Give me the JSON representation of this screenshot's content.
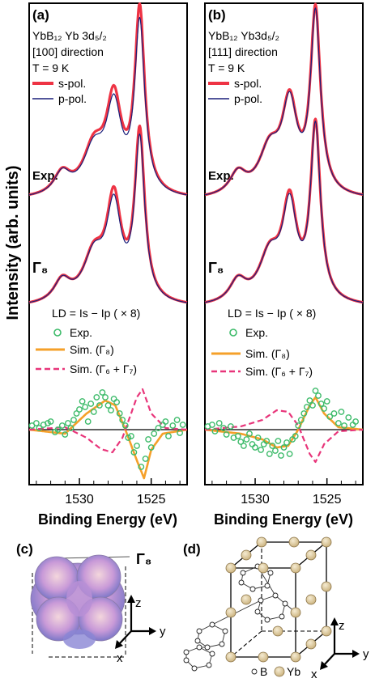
{
  "colors": {
    "s_pol": "#ee3344",
    "p_pol": "#1a1f7a",
    "exp_ld": "#3dbb6a",
    "sim_g8": "#f5a02a",
    "sim_g67": "#e8357a",
    "axis": "#000000",
    "atom_yb": "#d8c49a"
  },
  "ylabel": "Intensity (arb. units)",
  "chart_data": [
    {
      "type": "line",
      "panel": "(a)",
      "sample_line1": "YbB₁₂ Yb 3d₅/₂",
      "sample_line2": "[100] direction",
      "temperature": "T = 9 K",
      "legend": {
        "s_pol": "s-pol.",
        "p_pol": "p-pol."
      },
      "label_exp": "Exp.",
      "label_sim": "Γ₈",
      "ld_formula": "LD = Is − Ip ( × 8)",
      "ld_legend": {
        "exp": "Exp.",
        "sim_g8": "Sim. (Γ₈)",
        "sim_g67": "Sim. (Γ₆ + Γ₇)"
      },
      "xlabel": "Binding Energy (eV)",
      "xlim": [
        1533.5,
        1522.5
      ],
      "xticks": [
        1530,
        1525
      ],
      "xtick_labels": [
        "1530",
        "1525"
      ],
      "series": [
        {
          "name": "s-pol.",
          "curve": "exp",
          "peaks": [
            [
              1531.2,
              0.12,
              0.7
            ],
            [
              1529.0,
              0.25,
              0.9
            ],
            [
              1527.6,
              0.5,
              0.65
            ],
            [
              1525.8,
              1.0,
              0.42
            ]
          ]
        },
        {
          "name": "p-pol.",
          "curve": "exp",
          "peaks": [
            [
              1531.2,
              0.12,
              0.7
            ],
            [
              1529.0,
              0.24,
              0.9
            ],
            [
              1527.6,
              0.46,
              0.65
            ],
            [
              1525.8,
              0.93,
              0.42
            ]
          ]
        },
        {
          "name": "s-pol.",
          "curve": "sim",
          "peaks": [
            [
              1531.2,
              0.12,
              0.7
            ],
            [
              1529.0,
              0.25,
              0.9
            ],
            [
              1527.6,
              0.54,
              0.62
            ],
            [
              1525.8,
              0.92,
              0.42
            ]
          ]
        },
        {
          "name": "p-pol.",
          "curve": "sim",
          "peaks": [
            [
              1531.2,
              0.12,
              0.7
            ],
            [
              1529.0,
              0.25,
              0.9
            ],
            [
              1527.6,
              0.5,
              0.62
            ],
            [
              1525.8,
              0.88,
              0.42
            ]
          ]
        }
      ],
      "ld_sim_g8": [
        [
          1533.5,
          0
        ],
        [
          1531.0,
          -0.05
        ],
        [
          1529.5,
          0.2
        ],
        [
          1528.2,
          0.36
        ],
        [
          1527.5,
          0.3
        ],
        [
          1526.8,
          0.0
        ],
        [
          1526.0,
          -0.38
        ],
        [
          1525.5,
          -0.6
        ],
        [
          1525.0,
          -0.25
        ],
        [
          1524.2,
          -0.05
        ],
        [
          1522.5,
          0
        ]
      ],
      "ld_sim_g67": [
        [
          1533.5,
          0
        ],
        [
          1531.0,
          0.03
        ],
        [
          1529.5,
          -0.1
        ],
        [
          1528.5,
          -0.24
        ],
        [
          1527.7,
          -0.28
        ],
        [
          1527.0,
          -0.1
        ],
        [
          1526.0,
          0.4
        ],
        [
          1525.6,
          0.5
        ],
        [
          1525.0,
          0.2
        ],
        [
          1524.0,
          0.02
        ],
        [
          1522.5,
          0
        ]
      ],
      "ld_exp": [
        [
          1533.3,
          0.05
        ],
        [
          1533.0,
          0.08
        ],
        [
          1532.8,
          0.02
        ],
        [
          1532.5,
          0.06
        ],
        [
          1532.2,
          0.08
        ],
        [
          1532.0,
          0.1
        ],
        [
          1531.7,
          -0.03
        ],
        [
          1531.5,
          0.0
        ],
        [
          1531.2,
          0.05
        ],
        [
          1531.0,
          -0.06
        ],
        [
          1530.8,
          0.08
        ],
        [
          1530.6,
          0.02
        ],
        [
          1530.4,
          0.12
        ],
        [
          1530.2,
          0.2
        ],
        [
          1530.0,
          0.25
        ],
        [
          1529.8,
          0.35
        ],
        [
          1529.6,
          0.28
        ],
        [
          1529.4,
          0.1
        ],
        [
          1529.2,
          0.32
        ],
        [
          1529.0,
          0.22
        ],
        [
          1528.8,
          0.4
        ],
        [
          1528.6,
          0.3
        ],
        [
          1528.4,
          0.46
        ],
        [
          1528.2,
          0.4
        ],
        [
          1528.0,
          0.3
        ],
        [
          1527.8,
          0.24
        ],
        [
          1527.6,
          0.38
        ],
        [
          1527.4,
          0.34
        ],
        [
          1527.2,
          0.2
        ],
        [
          1527.0,
          0.12
        ],
        [
          1526.8,
          0.05
        ],
        [
          1526.6,
          -0.1
        ],
        [
          1526.4,
          -0.08
        ],
        [
          1526.2,
          -0.28
        ],
        [
          1526.0,
          -0.2
        ],
        [
          1525.7,
          -0.46
        ],
        [
          1525.4,
          -0.36
        ],
        [
          1525.2,
          -0.12
        ],
        [
          1525.0,
          -0.22
        ],
        [
          1524.8,
          -0.05
        ],
        [
          1524.5,
          0.02
        ],
        [
          1524.2,
          0.06
        ],
        [
          1524.0,
          0.1
        ],
        [
          1523.8,
          -0.08
        ],
        [
          1523.5,
          0.05
        ],
        [
          1523.2,
          0.12
        ],
        [
          1523.0,
          -0.04
        ],
        [
          1522.8,
          0.06
        ]
      ]
    },
    {
      "type": "line",
      "panel": "(b)",
      "sample_line1": "YbB₁₂ Yb3d₅/₂",
      "sample_line2": "[111] direction",
      "temperature": "T = 9 K",
      "legend": {
        "s_pol": "s-pol.",
        "p_pol": "p-pol."
      },
      "label_exp": "Exp.",
      "label_sim": "Γ₈",
      "ld_formula": "LD = Is − Ip ( × 8)",
      "ld_legend": {
        "exp": "Exp.",
        "sim_g8": "Sim. (Γ₈)",
        "sim_g67": "Sim. (Γ₆ + Γ₇)"
      },
      "xlabel": "Binding Energy (eV)",
      "xlim": [
        1533.5,
        1522.5
      ],
      "xticks": [
        1530,
        1525
      ],
      "xtick_labels": [
        "1530",
        "1525"
      ],
      "series": [
        {
          "name": "s-pol.",
          "curve": "exp",
          "peaks": [
            [
              1531.2,
              0.12,
              0.7
            ],
            [
              1529.0,
              0.24,
              0.9
            ],
            [
              1527.6,
              0.48,
              0.65
            ],
            [
              1525.8,
              1.0,
              0.42
            ]
          ]
        },
        {
          "name": "p-pol.",
          "curve": "exp",
          "peaks": [
            [
              1531.2,
              0.12,
              0.7
            ],
            [
              1529.0,
              0.24,
              0.9
            ],
            [
              1527.6,
              0.47,
              0.65
            ],
            [
              1525.8,
              0.98,
              0.42
            ]
          ]
        },
        {
          "name": "s-pol.",
          "curve": "sim",
          "peaks": [
            [
              1531.2,
              0.12,
              0.7
            ],
            [
              1529.0,
              0.25,
              0.9
            ],
            [
              1527.6,
              0.52,
              0.62
            ],
            [
              1525.8,
              0.96,
              0.42
            ]
          ]
        },
        {
          "name": "p-pol.",
          "curve": "sim",
          "peaks": [
            [
              1531.2,
              0.12,
              0.7
            ],
            [
              1529.0,
              0.25,
              0.9
            ],
            [
              1527.6,
              0.5,
              0.62
            ],
            [
              1525.8,
              0.95,
              0.42
            ]
          ]
        }
      ],
      "ld_sim_g8": [
        [
          1533.5,
          0
        ],
        [
          1531.0,
          -0.05
        ],
        [
          1529.5,
          -0.12
        ],
        [
          1528.5,
          -0.22
        ],
        [
          1527.7,
          -0.2
        ],
        [
          1527.0,
          0.0
        ],
        [
          1526.2,
          0.3
        ],
        [
          1525.8,
          0.4
        ],
        [
          1525.2,
          0.2
        ],
        [
          1524.2,
          0.03
        ],
        [
          1522.5,
          0
        ]
      ],
      "ld_sim_g67": [
        [
          1533.5,
          0
        ],
        [
          1531.0,
          0.04
        ],
        [
          1529.5,
          0.12
        ],
        [
          1528.5,
          0.24
        ],
        [
          1527.7,
          0.22
        ],
        [
          1527.0,
          0.05
        ],
        [
          1526.2,
          -0.3
        ],
        [
          1525.8,
          -0.4
        ],
        [
          1525.2,
          -0.18
        ],
        [
          1524.2,
          -0.02
        ],
        [
          1522.5,
          0
        ]
      ],
      "ld_exp": [
        [
          1533.3,
          0.04
        ],
        [
          1533.0,
          0.06
        ],
        [
          1532.8,
          -0.02
        ],
        [
          1532.5,
          0.08
        ],
        [
          1532.2,
          0.02
        ],
        [
          1532.0,
          -0.06
        ],
        [
          1531.7,
          0.04
        ],
        [
          1531.5,
          -0.1
        ],
        [
          1531.2,
          -0.08
        ],
        [
          1531.0,
          -0.15
        ],
        [
          1530.8,
          -0.2
        ],
        [
          1530.6,
          -0.12
        ],
        [
          1530.4,
          -0.05
        ],
        [
          1530.2,
          -0.18
        ],
        [
          1530.0,
          -0.22
        ],
        [
          1529.8,
          -0.1
        ],
        [
          1529.6,
          -0.25
        ],
        [
          1529.4,
          -0.18
        ],
        [
          1529.2,
          -0.14
        ],
        [
          1529.0,
          -0.3
        ],
        [
          1528.8,
          -0.2
        ],
        [
          1528.6,
          -0.26
        ],
        [
          1528.4,
          -0.14
        ],
        [
          1528.2,
          -0.32
        ],
        [
          1528.0,
          -0.22
        ],
        [
          1527.8,
          -0.16
        ],
        [
          1527.6,
          -0.3
        ],
        [
          1527.4,
          -0.12
        ],
        [
          1527.2,
          -0.08
        ],
        [
          1527.0,
          0.05
        ],
        [
          1526.8,
          0.12
        ],
        [
          1526.6,
          0.2
        ],
        [
          1526.4,
          0.28
        ],
        [
          1526.2,
          0.36
        ],
        [
          1526.0,
          0.3
        ],
        [
          1525.8,
          0.48
        ],
        [
          1525.6,
          0.42
        ],
        [
          1525.4,
          0.32
        ],
        [
          1525.2,
          0.26
        ],
        [
          1525.0,
          0.35
        ],
        [
          1524.8,
          0.16
        ],
        [
          1524.5,
          0.2
        ],
        [
          1524.2,
          0.08
        ],
        [
          1524.0,
          0.22
        ],
        [
          1523.8,
          0.05
        ],
        [
          1523.5,
          0.15
        ],
        [
          1523.2,
          0.06
        ],
        [
          1523.0,
          0.1
        ]
      ]
    }
  ],
  "panel_c": {
    "label": "(c)",
    "gamma_label": "Γ₈",
    "axis_z": "z",
    "axis_y": "y",
    "axis_x": "x"
  },
  "panel_d": {
    "label": "(d)",
    "axis_z": "z",
    "axis_y": "y",
    "axis_x": "x",
    "legend_b": "B",
    "legend_yb": "Yb"
  }
}
